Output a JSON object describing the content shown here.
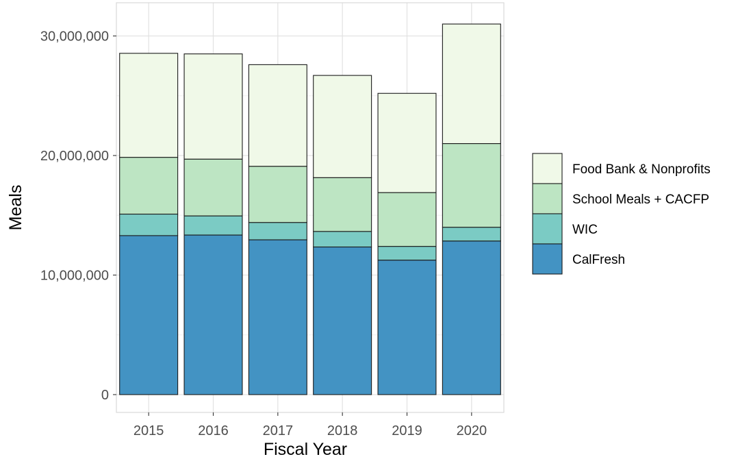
{
  "chart_data": {
    "type": "bar",
    "stacked": true,
    "title": "",
    "xlabel": "Fiscal Year",
    "ylabel": "Meals",
    "categories": [
      "2015",
      "2016",
      "2017",
      "2018",
      "2019",
      "2020"
    ],
    "series": [
      {
        "name": "CalFresh",
        "color": "#4393c3",
        "values": [
          13300000,
          13350000,
          12950000,
          12350000,
          11250000,
          12850000
        ]
      },
      {
        "name": "WIC",
        "color": "#7bcbc4",
        "values": [
          1800000,
          1600000,
          1450000,
          1300000,
          1150000,
          1150000
        ]
      },
      {
        "name": "School Meals + CACFP",
        "color": "#bde5c3",
        "values": [
          4750000,
          4750000,
          4700000,
          4500000,
          4500000,
          7000000
        ]
      },
      {
        "name": "Food Bank & Nonprofits",
        "color": "#f0f9e8",
        "values": [
          8700000,
          8800000,
          8500000,
          8550000,
          8300000,
          10000000
        ]
      }
    ],
    "ylim": [
      0,
      32000000
    ],
    "yticks": [
      0,
      10000000,
      20000000,
      30000000
    ],
    "ytick_labels": [
      "0",
      "10,000,000",
      "20,000,000",
      "30,000,000"
    ],
    "grid": true,
    "legend_position": "right",
    "legend_order": [
      "Food Bank & Nonprofits",
      "School Meals + CACFP",
      "WIC",
      "CalFresh"
    ]
  }
}
